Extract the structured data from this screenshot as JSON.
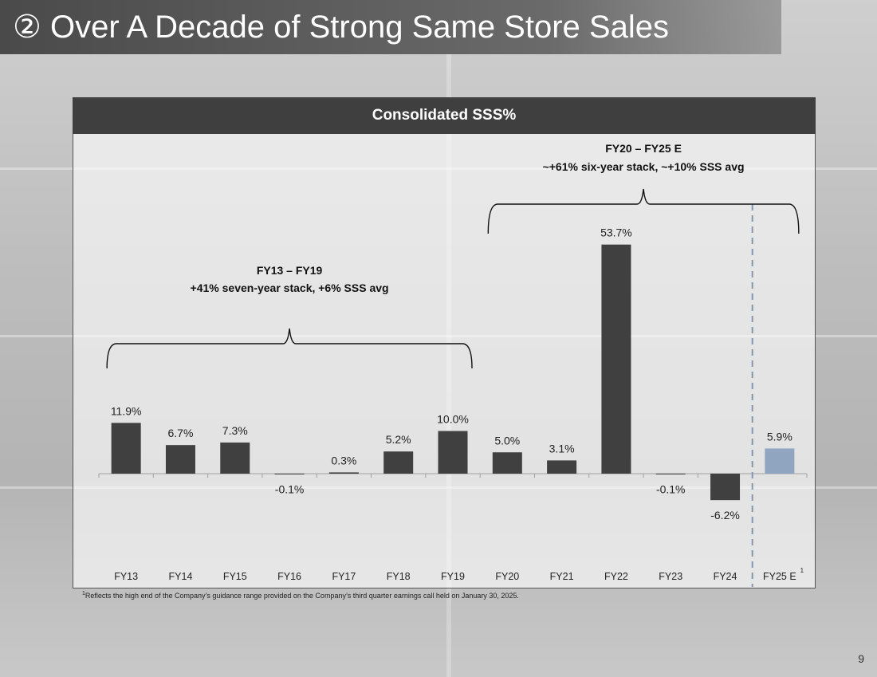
{
  "page": {
    "title": "② Over A Decade of Strong Same Store Sales",
    "page_number": "9",
    "footnote_marker": "1",
    "footnote": "Reflects the high end of the Company’s guidance range provided on the Company’s third quarter earnings call held on January 30, 2025."
  },
  "chart_data": {
    "type": "bar",
    "title": "Consolidated SSS%",
    "categories": [
      "FY13",
      "FY14",
      "FY15",
      "FY16",
      "FY17",
      "FY18",
      "FY19",
      "FY20",
      "FY21",
      "FY22",
      "FY23",
      "FY24",
      "FY25 E"
    ],
    "category_superscripts": [
      "",
      "",
      "",
      "",
      "",
      "",
      "",
      "",
      "",
      "",
      "",
      "",
      "1"
    ],
    "values": [
      11.9,
      6.7,
      7.3,
      -0.1,
      0.3,
      5.2,
      10.0,
      5.0,
      3.1,
      53.7,
      -0.1,
      -6.2,
      5.9
    ],
    "value_labels": [
      "11.9%",
      "6.7%",
      "7.3%",
      "-0.1%",
      "0.3%",
      "5.2%",
      "10.0%",
      "5.0%",
      "3.1%",
      "53.7%",
      "-0.1%",
      "-6.2%",
      "5.9%"
    ],
    "estimate_flags": [
      false,
      false,
      false,
      false,
      false,
      false,
      false,
      false,
      false,
      false,
      false,
      false,
      true
    ],
    "xlabel": "",
    "ylabel": "",
    "ylim": [
      -25,
      56
    ],
    "grid": false,
    "colors": {
      "actual": "#404040",
      "estimate": "#8fa5c0",
      "divider": "#8396b0"
    },
    "annotations": [
      {
        "title": "FY13 – FY19",
        "text": "+41% seven-year stack, +6% SSS avg",
        "from": "FY13",
        "to": "FY19"
      },
      {
        "title": "FY20 – FY25 E",
        "text": "~+61% six-year stack, ~+10% SSS avg",
        "from": "FY20",
        "to": "FY25 E"
      }
    ]
  }
}
